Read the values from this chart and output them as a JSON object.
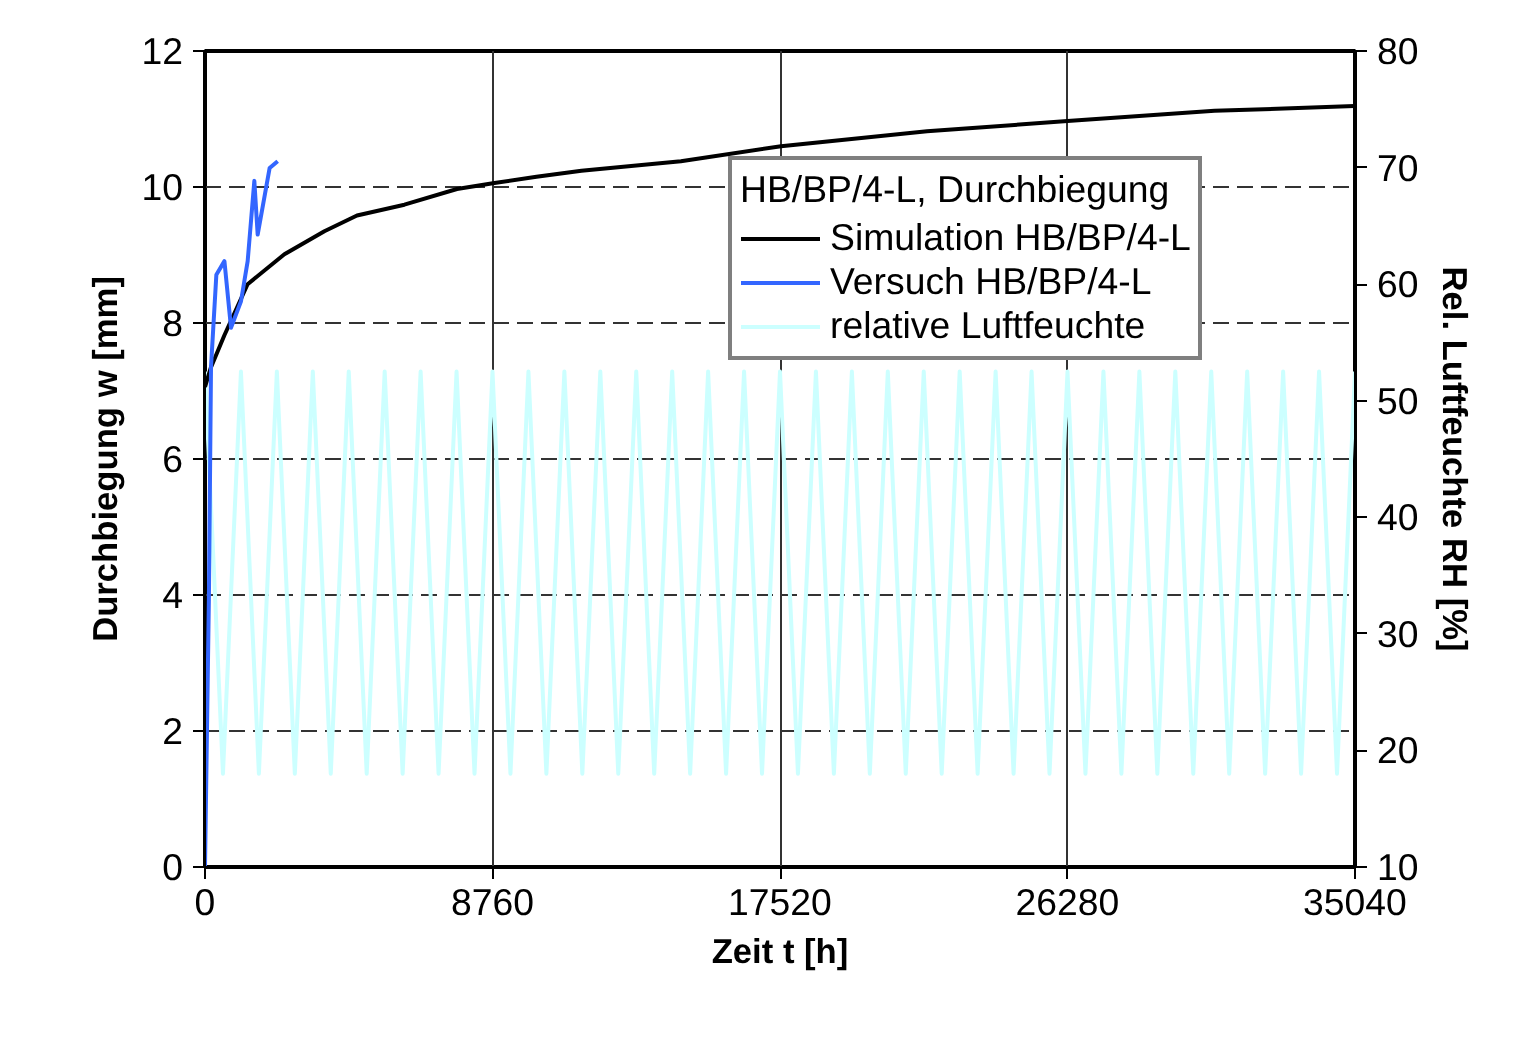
{
  "chart_data": {
    "type": "line",
    "xlabel": "Zeit t [h]",
    "ylabel": "Durchbiegung w [mm]",
    "y2label": "Rel. Luftfeuchte RH [%]",
    "legend_title": "HB/BP/4-L, Durchbiegung",
    "legend": "top right",
    "grid": true,
    "xlim": [
      0,
      35040
    ],
    "xticks": [
      0,
      8760,
      17520,
      26280,
      35040
    ],
    "ylim": [
      0,
      12
    ],
    "yticks": [
      0,
      2,
      4,
      6,
      8,
      10,
      12
    ],
    "y2lim": [
      10,
      80
    ],
    "y2ticks": [
      10,
      20,
      30,
      40,
      50,
      60,
      70,
      80
    ],
    "series": [
      {
        "name": "Simulation HB/BP/4-L",
        "color": "#000000",
        "x": [
          0,
          183,
          591,
          1298,
          2419,
          3638,
          4631,
          6076,
          7678,
          8818,
          10100,
          11470,
          14500,
          17550,
          22000,
          26280,
          30760,
          35020
        ],
        "values": [
          7.06,
          7.35,
          7.82,
          8.57,
          9.01,
          9.35,
          9.58,
          9.74,
          9.97,
          10.06,
          10.15,
          10.24,
          10.38,
          10.6,
          10.82,
          10.97,
          11.12,
          11.19
        ]
      },
      {
        "name": "Versuch HB/BP/4-L",
        "color": "#3366ff",
        "x": [
          0,
          120,
          183,
          346,
          592,
          792,
          1097,
          1300,
          1503,
          1605,
          1970,
          2214
        ],
        "values": [
          0,
          4,
          7.35,
          8.71,
          8.91,
          7.93,
          8.32,
          8.91,
          10.09,
          9.3,
          10.28,
          10.38
        ]
      },
      {
        "name": "relative Luftfeuchte",
        "color": "#ccffff",
        "axis": "y2",
        "x": [
          0,
          547,
          1095,
          1642,
          2190,
          2737,
          3285,
          3832,
          4380,
          4927,
          5475,
          6022,
          6570,
          7117,
          7665,
          8212,
          8760,
          9307,
          9855,
          10402,
          10950,
          11497,
          12045,
          12592,
          13140,
          13687,
          14235,
          14782,
          15330,
          15877,
          16425,
          16972,
          17520,
          18067,
          18615,
          19162,
          19710,
          20257,
          20805,
          21352,
          21900,
          22447,
          22995,
          23542,
          24090,
          24637,
          25185,
          25732,
          26280,
          26827,
          27375,
          27922,
          28470,
          29017,
          29565,
          30112,
          30660,
          31207,
          31755,
          32302,
          32850,
          33397,
          33945,
          34492,
          35040
        ],
        "values": [
          52.5,
          18,
          52.5,
          18,
          52.5,
          18,
          52.5,
          18,
          52.5,
          18,
          52.5,
          18,
          52.5,
          18,
          52.5,
          18,
          52.5,
          18,
          52.5,
          18,
          52.5,
          18,
          52.5,
          18,
          52.5,
          18,
          52.5,
          18,
          52.5,
          18,
          52.5,
          18,
          52.5,
          18,
          52.5,
          18,
          52.5,
          18,
          52.5,
          18,
          52.5,
          18,
          52.5,
          18,
          52.5,
          18,
          52.5,
          18,
          52.5,
          18,
          52.5,
          18,
          52.5,
          18,
          52.5,
          18,
          52.5,
          18,
          52.5,
          18,
          52.5,
          18,
          52.5,
          18,
          52.5
        ]
      }
    ]
  }
}
